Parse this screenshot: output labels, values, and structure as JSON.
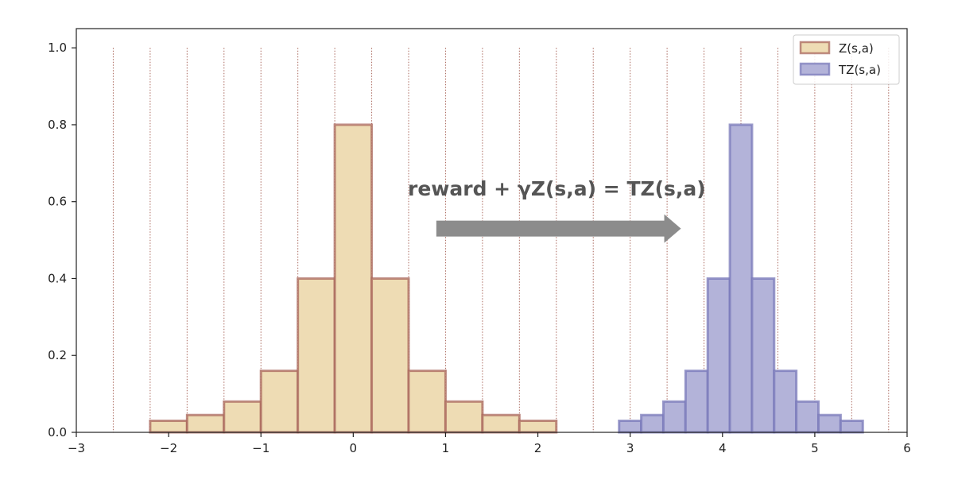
{
  "chart_data": {
    "type": "bar",
    "title": "",
    "xlabel": "",
    "ylabel": "",
    "xlim": [
      -3,
      6
    ],
    "ylim": [
      0,
      1.05
    ],
    "xticks": [
      -3,
      -2,
      -1,
      0,
      1,
      2,
      3,
      4,
      5,
      6
    ],
    "xtick_labels": [
      "−3",
      "−2",
      "−1",
      "0",
      "1",
      "2",
      "3",
      "4",
      "5",
      "6"
    ],
    "yticks": [
      0.0,
      0.2,
      0.4,
      0.6,
      0.8,
      1.0
    ],
    "ytick_labels": [
      "0.0",
      "0.2",
      "0.4",
      "0.6",
      "0.8",
      "1.0"
    ],
    "grid": "vertical dotted lines at support atoms",
    "support_lines": [
      -2.6,
      -2.2,
      -1.8,
      -1.4,
      -1.0,
      -0.6,
      -0.2,
      0.2,
      0.6,
      1.0,
      1.4,
      1.8,
      2.2,
      2.6,
      3.0,
      3.4,
      3.8,
      4.2,
      4.6,
      5.0,
      5.4,
      5.8
    ],
    "legend_position": "top-right",
    "series": [
      {
        "name": "Z(s,a)",
        "fill": "#eedcb4",
        "stroke": "#a9675c",
        "bins": [
          {
            "x0": -2.2,
            "x1": -1.8,
            "value": 0.03
          },
          {
            "x0": -1.8,
            "x1": -1.4,
            "value": 0.045
          },
          {
            "x0": -1.4,
            "x1": -1.0,
            "value": 0.08
          },
          {
            "x0": -1.0,
            "x1": -0.6,
            "value": 0.16
          },
          {
            "x0": -0.6,
            "x1": -0.2,
            "value": 0.4
          },
          {
            "x0": -0.2,
            "x1": 0.2,
            "value": 0.8
          },
          {
            "x0": 0.2,
            "x1": 0.6,
            "value": 0.4
          },
          {
            "x0": 0.6,
            "x1": 1.0,
            "value": 0.16
          },
          {
            "x0": 1.0,
            "x1": 1.4,
            "value": 0.08
          },
          {
            "x0": 1.4,
            "x1": 1.8,
            "value": 0.045
          },
          {
            "x0": 1.8,
            "x1": 2.2,
            "value": 0.03
          }
        ]
      },
      {
        "name": "TZ(s,a)",
        "fill": "#b3b3d9",
        "stroke": "#7a7ab9",
        "bins": [
          {
            "x0": 2.88,
            "x1": 3.12,
            "value": 0.03
          },
          {
            "x0": 3.12,
            "x1": 3.36,
            "value": 0.045
          },
          {
            "x0": 3.36,
            "x1": 3.6,
            "value": 0.08
          },
          {
            "x0": 3.6,
            "x1": 3.84,
            "value": 0.16
          },
          {
            "x0": 3.84,
            "x1": 4.08,
            "value": 0.4
          },
          {
            "x0": 4.08,
            "x1": 4.32,
            "value": 0.8
          },
          {
            "x0": 4.32,
            "x1": 4.56,
            "value": 0.4
          },
          {
            "x0": 4.56,
            "x1": 4.8,
            "value": 0.16
          },
          {
            "x0": 4.8,
            "x1": 5.04,
            "value": 0.08
          },
          {
            "x0": 5.04,
            "x1": 5.28,
            "value": 0.045
          },
          {
            "x0": 5.28,
            "x1": 5.52,
            "value": 0.03
          }
        ]
      }
    ],
    "annotation": {
      "text": "reward + γZ(s,a) = TZ(s,a)",
      "arrow_from": [
        0.9,
        0.53
      ],
      "arrow_to": [
        3.55,
        0.53
      ],
      "arrow_color": "#8c8c8c",
      "text_color": "#555555"
    }
  }
}
